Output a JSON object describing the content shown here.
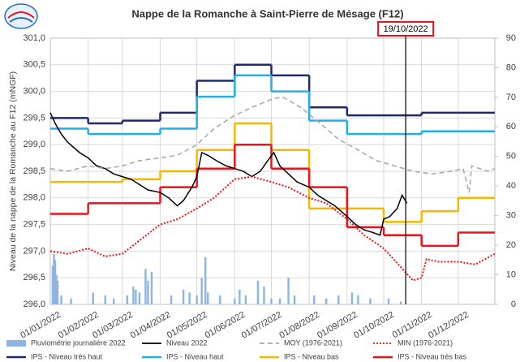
{
  "chart_data": {
    "type": "line",
    "title": "Nappe de la Romanche à Saint-Pierre de Mésage (F12)",
    "y_label": "Niveau de la nappe de la Romanche au F12 (mNGF)",
    "grid": true,
    "legend": "bottom",
    "xlim": [
      "2022-01-01",
      "2022-12-31"
    ],
    "xticks": [
      {
        "value": "2022-01-01",
        "label": "01/01/2022"
      },
      {
        "value": "2022-02-01",
        "label": "01/02/2022"
      },
      {
        "value": "2022-03-01",
        "label": "01/03/2022"
      },
      {
        "value": "2022-04-01",
        "label": "01/04/2022"
      },
      {
        "value": "2022-05-01",
        "label": "01/05/2022"
      },
      {
        "value": "2022-06-01",
        "label": "01/06/2022"
      },
      {
        "value": "2022-07-01",
        "label": "01/07/2022"
      },
      {
        "value": "2022-08-01",
        "label": "01/08/2022"
      },
      {
        "value": "2022-09-01",
        "label": "01/09/2022"
      },
      {
        "value": "2022-10-01",
        "label": "01/10/2022"
      },
      {
        "value": "2022-11-01",
        "label": "01/11/2022"
      },
      {
        "value": "2022-12-01",
        "label": "01/12/2022"
      }
    ],
    "ylim": [
      296,
      301
    ],
    "yticks": [
      {
        "value": 296,
        "label": "296,0"
      },
      {
        "value": 296.5,
        "label": "296,5"
      },
      {
        "value": 297,
        "label": "297,0"
      },
      {
        "value": 297.5,
        "label": "297,5"
      },
      {
        "value": 298,
        "label": "298,0"
      },
      {
        "value": 298.5,
        "label": "298,5"
      },
      {
        "value": 299,
        "label": "299,0"
      },
      {
        "value": 299.5,
        "label": "299,5"
      },
      {
        "value": 300,
        "label": "300,0"
      },
      {
        "value": 300.5,
        "label": "300,5"
      },
      {
        "value": 301,
        "label": "301,0"
      }
    ],
    "y2lim": [
      0,
      90
    ],
    "y2ticks": [
      0,
      10,
      20,
      30,
      40,
      50,
      60,
      70,
      80,
      90
    ],
    "annotations": [
      {
        "text": "19/10/2022",
        "x": "2022-10-19"
      }
    ],
    "series": [
      {
        "name": "Pluviométrie journalière 2022",
        "color": "#8db4e2",
        "kind": "bar",
        "axis": "y2",
        "x": [
          "2022-01-03",
          "2022-01-04",
          "2022-01-05",
          "2022-01-06",
          "2022-01-07",
          "2022-01-10",
          "2022-01-18",
          "2022-02-05",
          "2022-02-15",
          "2022-02-22",
          "2022-03-05",
          "2022-03-10",
          "2022-03-12",
          "2022-03-15",
          "2022-03-20",
          "2022-03-22",
          "2022-03-25",
          "2022-04-10",
          "2022-04-20",
          "2022-04-25",
          "2022-05-01",
          "2022-05-05",
          "2022-05-08",
          "2022-05-10",
          "2022-05-20",
          "2022-06-01",
          "2022-06-05",
          "2022-06-10",
          "2022-06-20",
          "2022-06-25",
          "2022-07-01",
          "2022-07-08",
          "2022-07-15",
          "2022-07-20",
          "2022-08-05",
          "2022-08-15",
          "2022-08-25",
          "2022-09-05",
          "2022-09-10",
          "2022-09-20",
          "2022-10-05",
          "2022-10-15"
        ],
        "values": [
          13,
          17,
          15,
          10,
          8,
          3,
          2,
          4,
          3,
          2,
          3,
          6,
          5,
          4,
          12,
          8,
          11,
          3,
          5,
          4,
          3,
          9,
          16,
          4,
          3,
          2,
          5,
          3,
          8,
          6,
          2,
          2,
          9,
          3,
          3,
          2,
          3,
          4,
          3,
          2,
          2,
          1
        ]
      },
      {
        "name": "Niveau 2022",
        "color": "#000000",
        "kind": "line",
        "x": [
          "2022-01-01",
          "2022-01-05",
          "2022-01-10",
          "2022-01-15",
          "2022-01-20",
          "2022-01-25",
          "2022-02-01",
          "2022-02-08",
          "2022-02-15",
          "2022-02-22",
          "2022-03-01",
          "2022-03-08",
          "2022-03-15",
          "2022-03-22",
          "2022-04-01",
          "2022-04-08",
          "2022-04-15",
          "2022-04-20",
          "2022-04-27",
          "2022-05-01",
          "2022-05-05",
          "2022-05-10",
          "2022-05-17",
          "2022-05-25",
          "2022-06-01",
          "2022-06-08",
          "2022-06-15",
          "2022-06-22",
          "2022-06-28",
          "2022-07-03",
          "2022-07-08",
          "2022-07-15",
          "2022-07-22",
          "2022-08-01",
          "2022-08-08",
          "2022-08-15",
          "2022-08-22",
          "2022-09-01",
          "2022-09-08",
          "2022-09-15",
          "2022-09-22",
          "2022-09-28",
          "2022-10-01",
          "2022-10-06",
          "2022-10-12",
          "2022-10-16",
          "2022-10-20"
        ],
        "values": [
          299.6,
          299.4,
          299.2,
          299.05,
          298.95,
          298.85,
          298.75,
          298.6,
          298.55,
          298.45,
          298.4,
          298.35,
          298.25,
          298.15,
          298.1,
          298.0,
          297.85,
          297.95,
          298.2,
          298.4,
          298.85,
          298.8,
          298.7,
          298.6,
          298.55,
          298.5,
          298.4,
          298.5,
          298.7,
          298.85,
          298.6,
          298.45,
          298.3,
          298.2,
          298.05,
          297.95,
          297.85,
          297.65,
          297.5,
          297.4,
          297.35,
          297.3,
          297.6,
          297.65,
          297.8,
          298.05,
          297.9
        ]
      },
      {
        "name": "MOY (1976-2021)",
        "color": "#a6a6a6",
        "kind": "line",
        "dash": "dashed",
        "x": [
          "2022-01-01",
          "2022-01-15",
          "2022-02-01",
          "2022-02-15",
          "2022-03-01",
          "2022-03-15",
          "2022-04-01",
          "2022-04-15",
          "2022-05-01",
          "2022-05-15",
          "2022-06-01",
          "2022-06-15",
          "2022-07-01",
          "2022-07-10",
          "2022-07-25",
          "2022-08-10",
          "2022-08-25",
          "2022-09-10",
          "2022-09-25",
          "2022-10-10",
          "2022-10-25",
          "2022-11-10",
          "2022-11-25",
          "2022-12-05",
          "2022-12-10",
          "2022-12-12",
          "2022-12-25",
          "2022-12-31"
        ],
        "values": [
          298.55,
          298.5,
          298.6,
          298.55,
          298.6,
          298.7,
          298.75,
          298.8,
          299.0,
          299.3,
          299.55,
          299.7,
          299.85,
          299.9,
          299.7,
          299.4,
          299.1,
          298.9,
          298.7,
          298.6,
          298.5,
          298.45,
          298.5,
          298.55,
          298.1,
          298.6,
          298.5,
          298.55
        ]
      },
      {
        "name": "MIN (1976-2021)",
        "color": "#e8141b",
        "kind": "line",
        "dash": "dotted",
        "x": [
          "2022-01-01",
          "2022-01-15",
          "2022-02-01",
          "2022-02-15",
          "2022-03-01",
          "2022-03-15",
          "2022-04-01",
          "2022-04-15",
          "2022-05-01",
          "2022-05-15",
          "2022-06-01",
          "2022-06-15",
          "2022-07-01",
          "2022-07-15",
          "2022-08-01",
          "2022-08-15",
          "2022-09-01",
          "2022-09-15",
          "2022-10-01",
          "2022-10-15",
          "2022-10-25",
          "2022-11-01",
          "2022-11-05",
          "2022-11-15",
          "2022-12-01",
          "2022-12-15",
          "2022-12-31"
        ],
        "values": [
          297.0,
          296.95,
          297.05,
          296.9,
          296.95,
          297.2,
          297.5,
          297.6,
          297.8,
          298.0,
          298.35,
          298.4,
          298.3,
          298.2,
          298.0,
          297.9,
          297.6,
          297.3,
          297.05,
          296.7,
          296.45,
          296.5,
          296.85,
          296.8,
          296.8,
          296.75,
          296.95
        ]
      },
      {
        "name": "IPS - Niveau très haut",
        "color": "#1f2a6e",
        "kind": "step",
        "x": [
          "2022-01-01",
          "2022-02-01",
          "2022-03-01",
          "2022-04-01",
          "2022-05-01",
          "2022-06-01",
          "2022-07-01",
          "2022-08-01",
          "2022-09-01",
          "2022-10-01",
          "2022-11-01",
          "2022-12-01"
        ],
        "values": [
          299.5,
          299.4,
          299.45,
          299.6,
          300.2,
          300.5,
          300.3,
          299.7,
          299.55,
          299.55,
          299.6,
          299.6
        ]
      },
      {
        "name": "IPS - Niveau haut",
        "color": "#22aee6",
        "kind": "step",
        "x": [
          "2022-01-01",
          "2022-02-01",
          "2022-03-01",
          "2022-04-01",
          "2022-05-01",
          "2022-06-01",
          "2022-07-01",
          "2022-08-01",
          "2022-09-01",
          "2022-10-01",
          "2022-11-01",
          "2022-12-01"
        ],
        "values": [
          299.3,
          299.2,
          299.2,
          299.3,
          299.9,
          300.3,
          300.0,
          299.45,
          299.2,
          299.2,
          299.25,
          299.25
        ]
      },
      {
        "name": "IPS - Niveau bas",
        "color": "#f5b800",
        "kind": "step",
        "x": [
          "2022-01-01",
          "2022-02-01",
          "2022-03-01",
          "2022-04-01",
          "2022-05-01",
          "2022-06-01",
          "2022-07-01",
          "2022-08-01",
          "2022-09-01",
          "2022-10-01",
          "2022-11-01",
          "2022-12-01"
        ],
        "values": [
          298.3,
          298.3,
          298.35,
          298.5,
          298.9,
          299.4,
          298.9,
          297.8,
          297.8,
          297.55,
          297.75,
          298.0
        ]
      },
      {
        "name": "IPS - Niveau très bas",
        "color": "#e8141b",
        "kind": "step",
        "x": [
          "2022-01-01",
          "2022-02-01",
          "2022-03-01",
          "2022-04-01",
          "2022-05-01",
          "2022-06-01",
          "2022-07-01",
          "2022-08-01",
          "2022-09-01",
          "2022-10-01",
          "2022-11-01",
          "2022-12-01"
        ],
        "values": [
          297.7,
          297.9,
          297.9,
          298.2,
          298.55,
          299.0,
          298.55,
          298.2,
          297.45,
          297.3,
          297.1,
          297.35
        ]
      }
    ]
  }
}
